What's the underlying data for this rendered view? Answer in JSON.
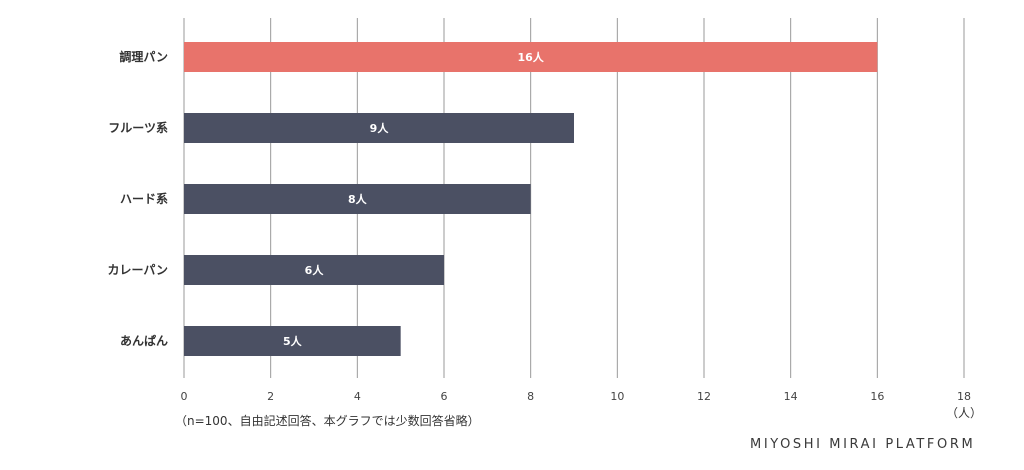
{
  "chart_data": {
    "type": "bar",
    "orientation": "horizontal",
    "categories": [
      "調理パン",
      "フルーツ系",
      "ハード系",
      "カレーパン",
      "あんぱん"
    ],
    "values": [
      16,
      9,
      8,
      6,
      5
    ],
    "data_labels": [
      "16人",
      "9人",
      "8人",
      "6人",
      "5人"
    ],
    "xlim": [
      0,
      18
    ],
    "x_ticks": [
      0,
      2,
      4,
      6,
      8,
      10,
      12,
      14,
      16,
      18
    ],
    "x_unit_label": "（人）",
    "grid": "vertical",
    "colors": {
      "highlight": "#e8736b",
      "default": "#4b5063",
      "grid": "#9a9a9a"
    },
    "highlight_index": 0
  },
  "footnote": "（n=100、自由記述回答、本グラフでは少数回答省略）",
  "brand": "MIYOSHI MIRAI PLATFORM"
}
